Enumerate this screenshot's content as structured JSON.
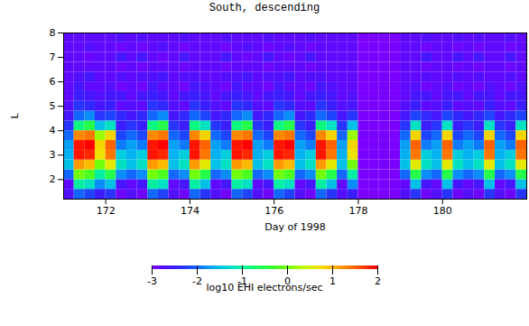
{
  "chart_data": {
    "type": "heatmap",
    "title": "South, descending",
    "x_label": "Day of 1998",
    "y_label": "L",
    "xlim": [
      171,
      182
    ],
    "xticks": [
      172,
      174,
      176,
      178,
      180
    ],
    "ylim": [
      1.2,
      8
    ],
    "yticks": [
      2,
      3,
      4,
      5,
      6,
      7,
      8
    ],
    "x_bins": [
      171,
      171.25,
      171.5,
      171.75,
      172,
      172.25,
      172.5,
      172.75,
      173,
      173.25,
      173.5,
      173.75,
      174,
      174.25,
      174.5,
      174.75,
      175,
      175.25,
      175.5,
      175.75,
      176,
      176.25,
      176.5,
      176.75,
      177,
      177.25,
      177.5,
      177.75,
      178,
      178.25,
      178.5,
      178.75,
      179,
      179.25,
      179.5,
      179.75,
      180,
      180.25,
      180.5,
      180.75,
      181,
      181.25,
      181.5,
      181.75,
      182
    ],
    "y_bins": [
      1.2,
      1.6,
      2,
      2.4,
      2.8,
      3.2,
      3.6,
      4,
      4.4,
      4.8,
      5.2,
      5.6,
      6,
      6.4,
      6.8,
      7.2,
      7.6,
      8
    ],
    "values": [
      [
        -2.7,
        -2.8,
        -2,
        -1.5,
        -1.6,
        -1.7,
        -2,
        -2.3,
        -2.6,
        -2.7,
        -2.8,
        -2.8,
        -2.8,
        -2.8,
        -2.8,
        -2.8,
        -2.8
      ],
      [
        -2,
        -1,
        0,
        1.2,
        1.9,
        1.9,
        1.3,
        -0.8,
        -2,
        -2.3,
        -2.5,
        -2.6,
        -2.7,
        -2.8,
        -2.8,
        -2.8,
        -2.8
      ],
      [
        -2.2,
        -1.2,
        -0.2,
        1,
        1.8,
        2,
        1.4,
        -0.5,
        -1.8,
        -2.4,
        -2.6,
        -2.8,
        -2.6,
        -2.8,
        -2.9,
        -2.7,
        -2.8
      ],
      [
        -2.5,
        -1.8,
        -1,
        0,
        0.7,
        0.8,
        0.2,
        -1.5,
        -2.3,
        -2.6,
        -2.7,
        -2.8,
        -2.8,
        -2.8,
        -2.8,
        -2.8,
        -2.8
      ],
      [
        -2.3,
        -1.5,
        -0.5,
        0.6,
        1.4,
        1.5,
        0.8,
        -1.2,
        -2.2,
        -2.5,
        -2.6,
        -2.7,
        -2.8,
        -2.8,
        -2.8,
        -2.8,
        -2.8
      ],
      [
        -2.9,
        -2.6,
        -1.8,
        -1.2,
        -1.4,
        -1.9,
        -2.2,
        -2.5,
        -2.4,
        -2.8,
        -2.6,
        -2.9,
        -2.7,
        -2.9,
        -2.6,
        -2.9,
        -2.7
      ],
      [
        -2.7,
        -2.8,
        -2,
        -1.5,
        -1.6,
        -1.7,
        -2,
        -2.3,
        -2.6,
        -2.7,
        -2.8,
        -2.8,
        -2.8,
        -2.8,
        -2.8,
        -2.8,
        -2.8
      ],
      [
        -2.9,
        -2.6,
        -1.8,
        -1.2,
        -1.4,
        -1.9,
        -2.2,
        -2.5,
        -2.4,
        -2.8,
        -2.6,
        -2.9,
        -2.7,
        -2.9,
        -2.6,
        -2.9,
        -2.7
      ],
      [
        -2,
        -1,
        0,
        1.2,
        1.9,
        1.9,
        1.3,
        -0.8,
        -2,
        -2.3,
        -2.5,
        -2.6,
        -2.7,
        -2.8,
        -2.8,
        -2.8,
        -2.8
      ],
      [
        -2.2,
        -1.2,
        -0.2,
        1,
        1.8,
        2,
        1.4,
        -0.5,
        -1.8,
        -2.4,
        -2.6,
        -2.8,
        -2.6,
        -2.8,
        -2.9,
        -2.7,
        -2.8
      ],
      [
        -2.7,
        -2.8,
        -2,
        -1.5,
        -1.6,
        -1.7,
        -2,
        -2.3,
        -2.6,
        -2.7,
        -2.8,
        -2.8,
        -2.8,
        -2.8,
        -2.8,
        -2.8,
        -2.8
      ],
      [
        -2.9,
        -2.6,
        -1.8,
        -1.2,
        -1.4,
        -1.9,
        -2.2,
        -2.5,
        -2.4,
        -2.8,
        -2.6,
        -2.9,
        -2.7,
        -2.9,
        -2.6,
        -2.9,
        -2.7
      ],
      [
        -2,
        -1,
        0,
        1.2,
        1.9,
        1.9,
        1.3,
        -0.8,
        -2,
        -2.3,
        -2.5,
        -2.6,
        -2.7,
        -2.8,
        -2.8,
        -2.8,
        -2.8
      ],
      [
        -2.3,
        -1.5,
        -0.5,
        0.6,
        1.4,
        1.5,
        0.8,
        -1.2,
        -2.2,
        -2.5,
        -2.6,
        -2.7,
        -2.8,
        -2.8,
        -2.8,
        -2.8,
        -2.8
      ],
      [
        -2.7,
        -2.8,
        -2,
        -1.5,
        -1.6,
        -1.7,
        -2,
        -2.3,
        -2.6,
        -2.7,
        -2.8,
        -2.8,
        -2.8,
        -2.8,
        -2.8,
        -2.8,
        -2.8
      ],
      [
        -2.9,
        -2.6,
        -1.8,
        -1.2,
        -1.4,
        -1.9,
        -2.2,
        -2.5,
        -2.4,
        -2.8,
        -2.6,
        -2.9,
        -2.7,
        -2.9,
        -2.6,
        -2.9,
        -2.7
      ],
      [
        -2,
        -1,
        0,
        1.2,
        1.9,
        1.9,
        1.3,
        -0.8,
        -2,
        -2.3,
        -2.5,
        -2.6,
        -2.7,
        -2.8,
        -2.8,
        -2.8,
        -2.8
      ],
      [
        -2.2,
        -1.2,
        -0.2,
        1,
        1.8,
        2,
        1.4,
        -0.5,
        -1.8,
        -2.4,
        -2.6,
        -2.8,
        -2.6,
        -2.8,
        -2.9,
        -2.7,
        -2.8
      ],
      [
        -2.7,
        -2.8,
        -2,
        -1.5,
        -1.6,
        -1.7,
        -2,
        -2.3,
        -2.6,
        -2.7,
        -2.8,
        -2.8,
        -2.8,
        -2.8,
        -2.8,
        -2.8,
        -2.8
      ],
      [
        -2.9,
        -2.6,
        -1.8,
        -1.2,
        -1.4,
        -1.9,
        -2.2,
        -2.5,
        -2.4,
        -2.8,
        -2.6,
        -2.9,
        -2.7,
        -2.9,
        -2.6,
        -2.9,
        -2.7
      ],
      [
        -2,
        -1,
        0,
        1.2,
        1.9,
        1.9,
        1.3,
        -0.8,
        -2,
        -2.3,
        -2.5,
        -2.6,
        -2.7,
        -2.8,
        -2.8,
        -2.8,
        -2.8
      ],
      [
        -2.2,
        -1.2,
        -0.2,
        1,
        1.8,
        2,
        1.4,
        -0.5,
        -1.8,
        -2.4,
        -2.6,
        -2.8,
        -2.6,
        -2.8,
        -2.9,
        -2.7,
        -2.8
      ],
      [
        -2.7,
        -2.8,
        -2,
        -1.5,
        -1.6,
        -1.7,
        -2,
        -2.3,
        -2.6,
        -2.7,
        -2.8,
        -2.8,
        -2.8,
        -2.8,
        -2.8,
        -2.8,
        -2.8
      ],
      [
        -2.9,
        -2.6,
        -1.8,
        -1.2,
        -1.4,
        -1.9,
        -2.2,
        -2.5,
        -2.4,
        -2.8,
        -2.6,
        -2.9,
        -2.7,
        -2.9,
        -2.6,
        -2.9,
        -2.7
      ],
      [
        -2,
        -1,
        0,
        1.2,
        1.9,
        1.9,
        1.3,
        -0.8,
        -2,
        -2.3,
        -2.5,
        -2.6,
        -2.7,
        -2.8,
        -2.8,
        -2.8,
        -2.8
      ],
      [
        -2.3,
        -1.5,
        -0.5,
        0.6,
        1.4,
        1.5,
        0.8,
        -1.2,
        -2.2,
        -2.5,
        -2.6,
        -2.7,
        -2.8,
        -2.8,
        -2.8,
        -2.8,
        -2.8
      ],
      [
        -2.7,
        -2.8,
        -2,
        -1.5,
        -1.6,
        -1.7,
        -2,
        -2.3,
        -2.6,
        -2.7,
        -2.8,
        -2.8,
        -2.8,
        -2.8,
        -2.8,
        -2.8,
        -2.8
      ],
      [
        -2.5,
        -1.8,
        -1,
        0,
        0.7,
        0.8,
        0.2,
        -1.5,
        -2.3,
        -2.6,
        -2.7,
        -2.8,
        -2.8,
        -2.8,
        -2.8,
        -2.8,
        -2.8
      ],
      [
        -3,
        -3,
        -3,
        -3,
        -3,
        -3,
        -3,
        -3,
        -3,
        -3,
        -3,
        -3,
        -3,
        -3,
        -3,
        -3,
        -3
      ],
      [
        -3,
        -3,
        -3,
        -3,
        -3,
        -3,
        -3,
        -3,
        -3,
        -3,
        -3,
        -3,
        -3,
        -3,
        -3,
        -3,
        -3
      ],
      [
        -3,
        -3,
        -3,
        -3,
        -3,
        -3,
        -3,
        -3,
        -3,
        -3,
        -3,
        -3,
        -3,
        -3,
        -3,
        -3,
        -3
      ],
      [
        -3,
        -3,
        -3,
        -3,
        -3,
        -3,
        -3,
        -3,
        -3,
        -3,
        -3,
        -3,
        -3,
        -3,
        -3,
        -3,
        -3
      ],
      [
        -2.7,
        -2.8,
        -2,
        -1.5,
        -1.6,
        -1.7,
        -2,
        -2.3,
        -2.6,
        -2.7,
        -2.8,
        -2.8,
        -2.8,
        -2.8,
        -2.8,
        -2.8,
        -2.8
      ],
      [
        -2.3,
        -1.5,
        -0.5,
        0.6,
        1.4,
        1.5,
        0.8,
        -1.2,
        -2.2,
        -2.5,
        -2.6,
        -2.7,
        -2.8,
        -2.8,
        -2.8,
        -2.8,
        -2.8
      ],
      [
        -2.9,
        -2.6,
        -1.8,
        -1.2,
        -1.4,
        -1.9,
        -2.2,
        -2.5,
        -2.4,
        -2.8,
        -2.6,
        -2.9,
        -2.7,
        -2.9,
        -2.6,
        -2.9,
        -2.7
      ],
      [
        -2.7,
        -2.8,
        -2,
        -1.5,
        -1.6,
        -1.7,
        -2,
        -2.3,
        -2.6,
        -2.7,
        -2.8,
        -2.8,
        -2.8,
        -2.8,
        -2.8,
        -2.8,
        -2.8
      ],
      [
        -2.3,
        -1.5,
        -0.5,
        0.6,
        1.4,
        1.5,
        0.8,
        -1.2,
        -2.2,
        -2.5,
        -2.6,
        -2.7,
        -2.8,
        -2.8,
        -2.8,
        -2.8,
        -2.8
      ],
      [
        -2.9,
        -2.6,
        -1.8,
        -1.2,
        -1.4,
        -1.9,
        -2.2,
        -2.5,
        -2.4,
        -2.8,
        -2.6,
        -2.9,
        -2.7,
        -2.9,
        -2.6,
        -2.9,
        -2.7
      ],
      [
        -2.7,
        -2.8,
        -2,
        -1.5,
        -1.6,
        -1.7,
        -2,
        -2.3,
        -2.6,
        -2.7,
        -2.8,
        -2.8,
        -2.8,
        -2.8,
        -2.8,
        -2.8,
        -2.8
      ],
      [
        -2.9,
        -2.6,
        -1.8,
        -1.2,
        -1.4,
        -1.9,
        -2.2,
        -2.5,
        -2.4,
        -2.8,
        -2.6,
        -2.9,
        -2.7,
        -2.9,
        -2.6,
        -2.9,
        -2.7
      ],
      [
        -2.3,
        -1.5,
        -0.5,
        0.6,
        1.4,
        1.5,
        0.8,
        -1.2,
        -2.2,
        -2.5,
        -2.6,
        -2.7,
        -2.8,
        -2.8,
        -2.8,
        -2.8,
        -2.8
      ],
      [
        -2.7,
        -2.8,
        -2,
        -1.5,
        -1.6,
        -1.7,
        -2,
        -2.3,
        -2.6,
        -2.7,
        -2.8,
        -2.8,
        -2.8,
        -2.8,
        -2.8,
        -2.8,
        -2.8
      ],
      [
        -2.9,
        -2.6,
        -1.8,
        -1.2,
        -1.4,
        -1.9,
        -2.2,
        -2.5,
        -2.4,
        -2.8,
        -2.6,
        -2.9,
        -2.7,
        -2.9,
        -2.6,
        -2.9,
        -2.7
      ],
      [
        -2.3,
        -1.5,
        -0.5,
        0.6,
        1.4,
        1.5,
        0.8,
        -1.2,
        -2.2,
        -2.5,
        -2.6,
        -2.7,
        -2.8,
        -2.8,
        -2.8,
        -2.8,
        -2.8
      ]
    ],
    "colorbar": {
      "label": "log10 EHI electrons/sec",
      "range": [
        -3,
        2
      ],
      "ticks": [
        -3,
        -2,
        -1,
        0,
        1,
        2
      ]
    }
  }
}
